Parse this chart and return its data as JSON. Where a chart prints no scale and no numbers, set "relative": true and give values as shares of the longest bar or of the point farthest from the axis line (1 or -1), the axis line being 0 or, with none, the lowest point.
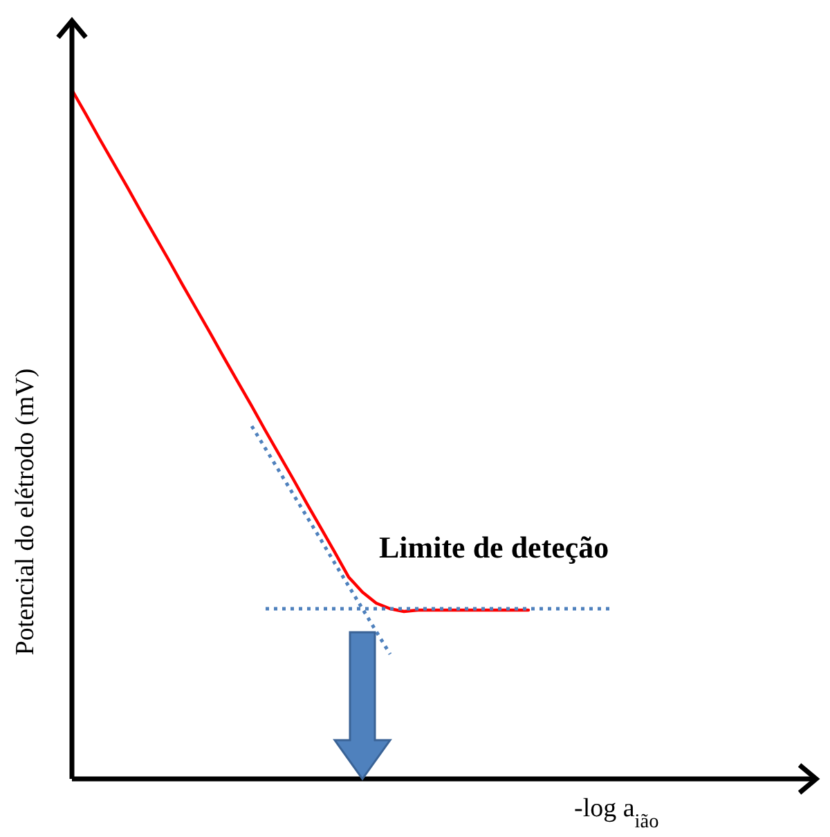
{
  "chart_data": {
    "type": "line",
    "relative": true,
    "xlabel": "-log a$_{ião}$",
    "ylabel": "Potencial do elétrodo (mV)",
    "annotations": [
      "Limite de deteção"
    ],
    "categories": [
      null,
      null,
      null,
      null,
      null,
      null,
      null,
      null,
      null,
      null,
      null,
      null,
      null,
      null,
      null,
      null,
      null,
      null,
      null,
      null,
      null,
      null,
      null,
      null,
      null,
      null,
      null,
      null,
      null,
      null,
      null,
      null,
      null,
      null,
      null,
      null,
      null,
      null,
      null,
      null,
      null,
      null,
      null,
      null,
      null,
      null,
      null,
      null,
      null,
      null,
      null,
      null,
      null,
      null
    ],
    "series": [
      {
        "color": "#ff0000",
        "line_style": "solid",
        "values": [
          1.0,
          0.965,
          0.929,
          0.894,
          0.859,
          0.823,
          0.788,
          0.753,
          0.717,
          0.682,
          0.647,
          0.611,
          0.576,
          0.541,
          0.505,
          0.47,
          0.435,
          0.399,
          0.364,
          0.329,
          0.293,
          0.271,
          0.255,
          0.247,
          0.243,
          0.245,
          0.245,
          0.245,
          0.245,
          0.245,
          0.245,
          0.245,
          0.245,
          0.245,
          null,
          null,
          null,
          null,
          null,
          null,
          null,
          null,
          null,
          null,
          null,
          null,
          null,
          null,
          null,
          null,
          null,
          null,
          null,
          null
        ]
      },
      {
        "color": "#4f81bd",
        "line_style": "dotted",
        "values": [
          null,
          null,
          null,
          null,
          null,
          null,
          null,
          null,
          null,
          null,
          null,
          null,
          null,
          0.512,
          0.479,
          0.446,
          0.413,
          0.38,
          0.347,
          0.313,
          0.28,
          0.247,
          0.214,
          0.181,
          null,
          null,
          null,
          null,
          null,
          null,
          null,
          null,
          null,
          null,
          null,
          null,
          null,
          null,
          null,
          null,
          null,
          null,
          null,
          null,
          null,
          null,
          null,
          null,
          null,
          null,
          null,
          null,
          null,
          null
        ]
      },
      {
        "color": "#4f81bd",
        "line_style": "dotted",
        "values": [
          null,
          null,
          null,
          null,
          null,
          null,
          null,
          null,
          null,
          null,
          null,
          null,
          null,
          null,
          0.247,
          0.247,
          0.247,
          0.247,
          0.247,
          0.247,
          0.247,
          0.247,
          0.247,
          0.247,
          0.247,
          0.247,
          0.247,
          0.247,
          0.247,
          0.247,
          0.247,
          0.247,
          0.247,
          0.247,
          0.247,
          0.247,
          0.247,
          0.247,
          0.247,
          0.247,
          null,
          null,
          null,
          null,
          null,
          null,
          null,
          null,
          null,
          null,
          null,
          null,
          null,
          null
        ]
      }
    ]
  }
}
